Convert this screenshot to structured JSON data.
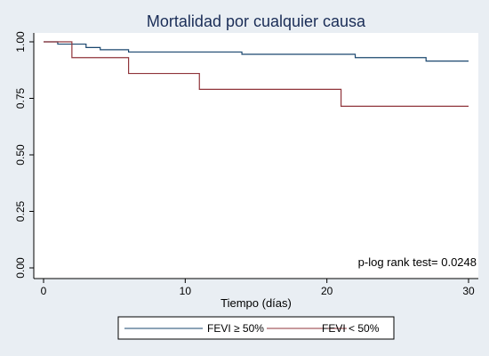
{
  "chart_data": {
    "type": "line",
    "title": "Mortalidad por cualquier causa",
    "xlabel": "Tiempo (días)",
    "ylabel": "",
    "xlim": [
      0,
      30
    ],
    "ylim": [
      0,
      1
    ],
    "x_ticks": [
      0,
      10,
      20,
      30
    ],
    "y_ticks": [
      0,
      0.25,
      0.5,
      0.75,
      1
    ],
    "y_tick_labels": [
      "0.00",
      "0.25",
      "0.50",
      "0.75",
      "1.00"
    ],
    "grid": false,
    "legend_position": "bottom",
    "annotation": "p-log rank test= 0.0248",
    "series": [
      {
        "name": "FEVI ≥ 50%",
        "color": "#1a476f",
        "step": true,
        "points": [
          [
            0,
            1.0
          ],
          [
            1,
            0.99
          ],
          [
            3,
            0.975
          ],
          [
            4,
            0.965
          ],
          [
            6,
            0.955
          ],
          [
            14,
            0.945
          ],
          [
            22,
            0.93
          ],
          [
            27,
            0.915
          ],
          [
            30,
            0.915
          ]
        ]
      },
      {
        "name": "FEVI < 50%",
        "color": "#90353b",
        "step": true,
        "points": [
          [
            0,
            1.0
          ],
          [
            2,
            0.93
          ],
          [
            6,
            0.86
          ],
          [
            11,
            0.79
          ],
          [
            21,
            0.715
          ],
          [
            30,
            0.715
          ]
        ]
      }
    ]
  }
}
